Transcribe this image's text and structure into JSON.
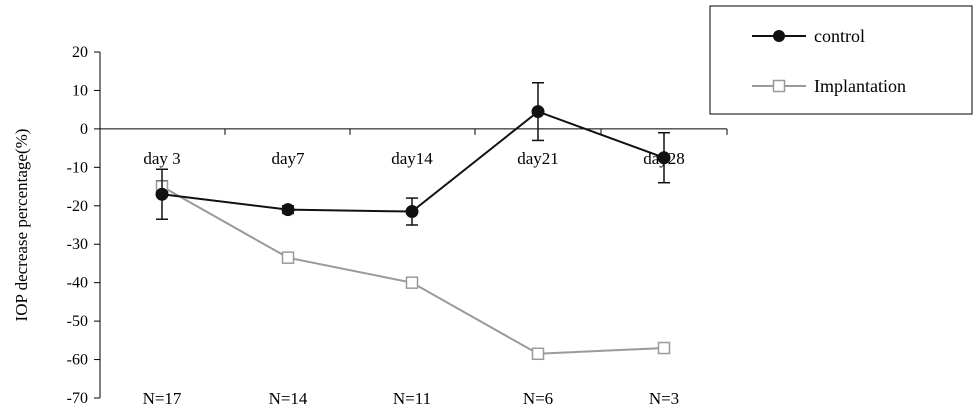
{
  "chart_data": {
    "type": "line",
    "ylabel": "IOP decrease percentage(%)",
    "ylim": [
      -70,
      20
    ],
    "yticks": [
      20,
      10,
      0,
      -10,
      -20,
      -30,
      -40,
      -50,
      -60,
      -70
    ],
    "categories": [
      "day 3",
      "day7",
      "day14",
      "day21",
      "day28"
    ],
    "n_labels": [
      "N=17",
      "N=14",
      "N=11",
      "N=6",
      "N=3"
    ],
    "legend_position": "top-right",
    "grid": false,
    "series": [
      {
        "name": "control",
        "values": [
          -17,
          -21,
          -21.5,
          4.5,
          -7.5
        ],
        "errors": [
          6.5,
          1,
          3.5,
          7.5,
          6.5
        ],
        "color": "#111111",
        "marker": "filled-circle"
      },
      {
        "name": "Implantation",
        "values": [
          -15,
          -33.5,
          -40,
          -58.5,
          -57
        ],
        "errors": [
          1.5,
          1.2,
          1.2,
          1.2,
          1
        ],
        "color": "#9a9a9a",
        "marker": "open-square"
      }
    ]
  }
}
